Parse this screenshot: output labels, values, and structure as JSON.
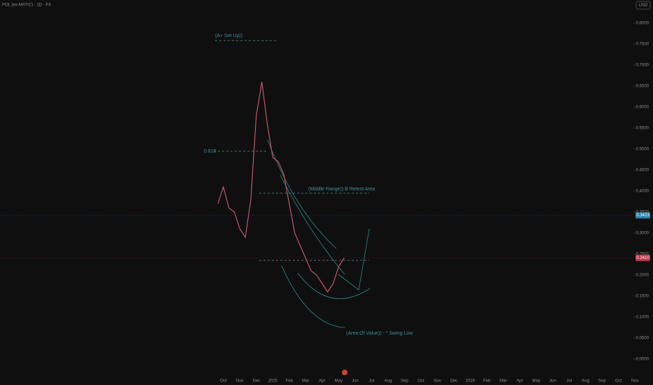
{
  "chart_data": {
    "type": "line",
    "title": "POL (ex-MATIC) · 1D · FX",
    "currency": "USD",
    "categories": [
      null,
      "Oct",
      null,
      null,
      "Nov",
      null,
      null,
      "Dec",
      null,
      null,
      "2025",
      null,
      null,
      "Feb",
      null,
      null,
      "Mar",
      null,
      null,
      "Apr",
      null,
      null,
      "May",
      null,
      null,
      "Jun",
      null,
      null,
      "Jul",
      null,
      null,
      "Aug",
      null,
      null,
      "Sep",
      null,
      null,
      "Oct",
      null,
      null,
      "Nov",
      null,
      null,
      "Dec",
      null,
      null,
      "2026",
      null,
      null,
      "Feb",
      null,
      null,
      "Mar",
      null,
      null,
      "Apr",
      null,
      null,
      "May",
      null,
      null,
      "Jun",
      null,
      null,
      "Jul",
      null,
      null,
      "Aug",
      null,
      null,
      "Sep",
      null,
      null,
      "Oct",
      null,
      null,
      "Nov",
      null
    ],
    "series": [
      {
        "name": "POL",
        "color": "#c2566a",
        "values": [
          0.37,
          0.41,
          0.36,
          0.35,
          0.31,
          0.29,
          0.38,
          0.58,
          0.66,
          0.56,
          0.48,
          0.47,
          0.44,
          0.37,
          0.3,
          0.27,
          0.24,
          0.21,
          0.2,
          0.18,
          0.16,
          0.18,
          0.22,
          0.241,
          null,
          null,
          null,
          null,
          null,
          null,
          null,
          null,
          null,
          null,
          null,
          null,
          null,
          null,
          null,
          null,
          null,
          null,
          null,
          null,
          null,
          null,
          null,
          null,
          null,
          null,
          null,
          null,
          null,
          null,
          null,
          null,
          null,
          null,
          null,
          null,
          null,
          null,
          null,
          null,
          null,
          null,
          null,
          null,
          null,
          null,
          null,
          null,
          null,
          null,
          null,
          null,
          null,
          null
        ]
      }
    ],
    "ylim": [
      0,
      0.8
    ],
    "yticks": [
      {
        "value": 0.8,
        "label": "0.8000"
      },
      {
        "value": 0.75,
        "label": "0.7500"
      },
      {
        "value": 0.7,
        "label": "0.7000"
      },
      {
        "value": 0.65,
        "label": "0.6500"
      },
      {
        "value": 0.6,
        "label": "0.6000"
      },
      {
        "value": 0.55,
        "label": "0.5500"
      },
      {
        "value": 0.5,
        "label": "0.5000"
      },
      {
        "value": 0.45,
        "label": "0.4500"
      },
      {
        "value": 0.4,
        "label": "0.4000"
      },
      {
        "value": 0.35,
        "label": "0.3500"
      },
      {
        "value": 0.3,
        "label": "0.3000"
      },
      {
        "value": 0.25,
        "label": "0.2500"
      },
      {
        "value": 0.2,
        "label": "0.2000"
      },
      {
        "value": 0.15,
        "label": "0.1500"
      },
      {
        "value": 0.1,
        "label": "0.1000"
      },
      {
        "value": 0.05,
        "label": "0.0500"
      },
      {
        "value": 0,
        "label": "−0.0000"
      }
    ],
    "price_markers": [
      {
        "value": 0.3423,
        "label": "0.3423",
        "color": "#2f7fa8"
      },
      {
        "value": 0.241,
        "label": "0.2410",
        "color": "#c2334b"
      }
    ],
    "annotations": [
      "(A+ Set Up))",
      "0.618",
      "(Middle Range)) B Retest Area",
      "(Area Of Value)) - * Swing Low"
    ]
  }
}
